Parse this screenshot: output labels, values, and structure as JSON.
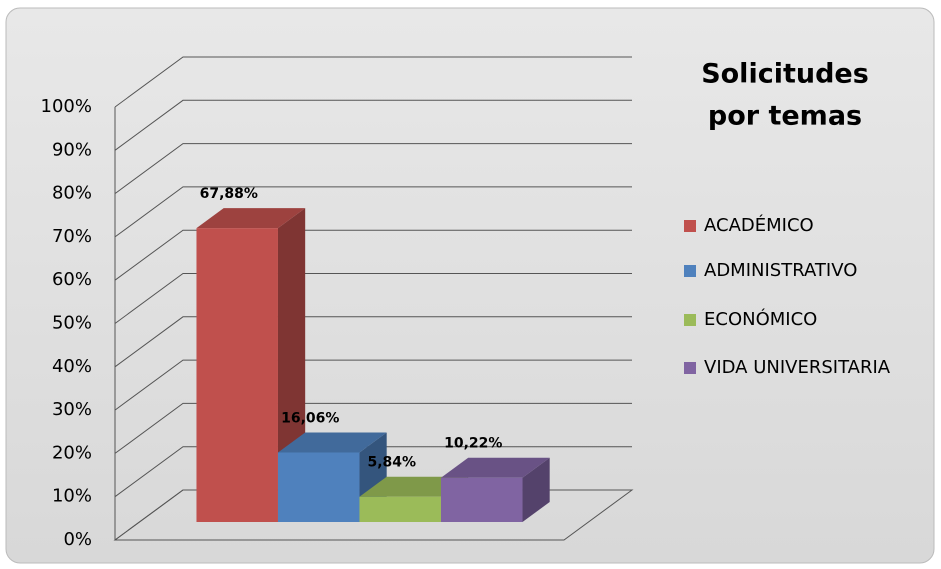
{
  "chart_data": {
    "type": "bar3d",
    "title": [
      "Solicitudes",
      "por temas"
    ],
    "series": [
      {
        "name": "ACADÉMICO",
        "color": "#c0504d",
        "values": [
          67.88
        ],
        "value_labels": [
          "67,88%"
        ]
      },
      {
        "name": "ADMINISTRATIVO",
        "color": "#4f81bd",
        "values": [
          16.06
        ],
        "value_labels": [
          "16,06%"
        ]
      },
      {
        "name": "ECONÓMICO",
        "color": "#9bbb59",
        "values": [
          5.84
        ],
        "value_labels": [
          "5,84%"
        ]
      },
      {
        "name": "VIDA UNIVERSITARIA",
        "color": "#8064a2",
        "values": [
          10.22
        ],
        "value_labels": [
          "10,22%"
        ]
      }
    ],
    "ylim": [
      0,
      100
    ],
    "yticks": [
      {
        "value": 0,
        "label": "0%"
      },
      {
        "value": 10,
        "label": "10%"
      },
      {
        "value": 20,
        "label": "20%"
      },
      {
        "value": 30,
        "label": "30%"
      },
      {
        "value": 40,
        "label": "40%"
      },
      {
        "value": 50,
        "label": "50%"
      },
      {
        "value": 60,
        "label": "60%"
      },
      {
        "value": 70,
        "label": "70%"
      },
      {
        "value": 80,
        "label": "80%"
      },
      {
        "value": 90,
        "label": "90%"
      },
      {
        "value": 100,
        "label": "100%"
      }
    ],
    "grid": true,
    "legend": "right"
  }
}
